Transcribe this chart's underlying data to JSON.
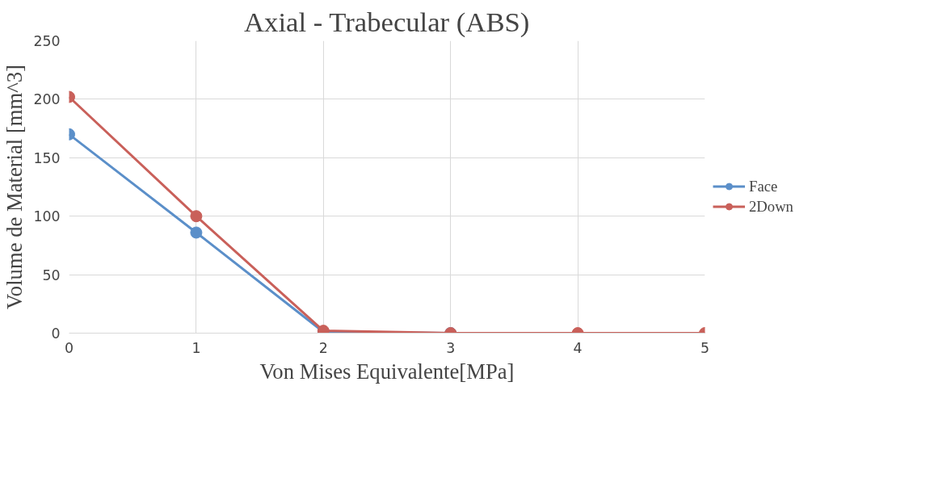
{
  "chart_data": {
    "type": "line",
    "title": "Axial - Trabecular (ABS)",
    "xlabel": "Von Mises Equivalente[MPa]",
    "ylabel": "Volume de Material [mm^3]",
    "x": [
      0,
      1,
      2,
      3,
      4,
      5
    ],
    "xlim": [
      0,
      5
    ],
    "xticks": [
      0,
      1,
      2,
      3,
      4,
      5
    ],
    "ylim": [
      0,
      250
    ],
    "yticks": [
      0,
      50,
      100,
      150,
      200,
      250
    ],
    "series": [
      {
        "name": "Face",
        "color": "#5b8fc9",
        "values": [
          170,
          86,
          1,
          0,
          null,
          null
        ]
      },
      {
        "name": "2Down",
        "color": "#c9605a",
        "values": [
          202,
          100,
          2,
          0,
          0,
          0
        ]
      }
    ],
    "grid": true,
    "legend": "right",
    "marker": "circle",
    "line_style": "solid"
  }
}
